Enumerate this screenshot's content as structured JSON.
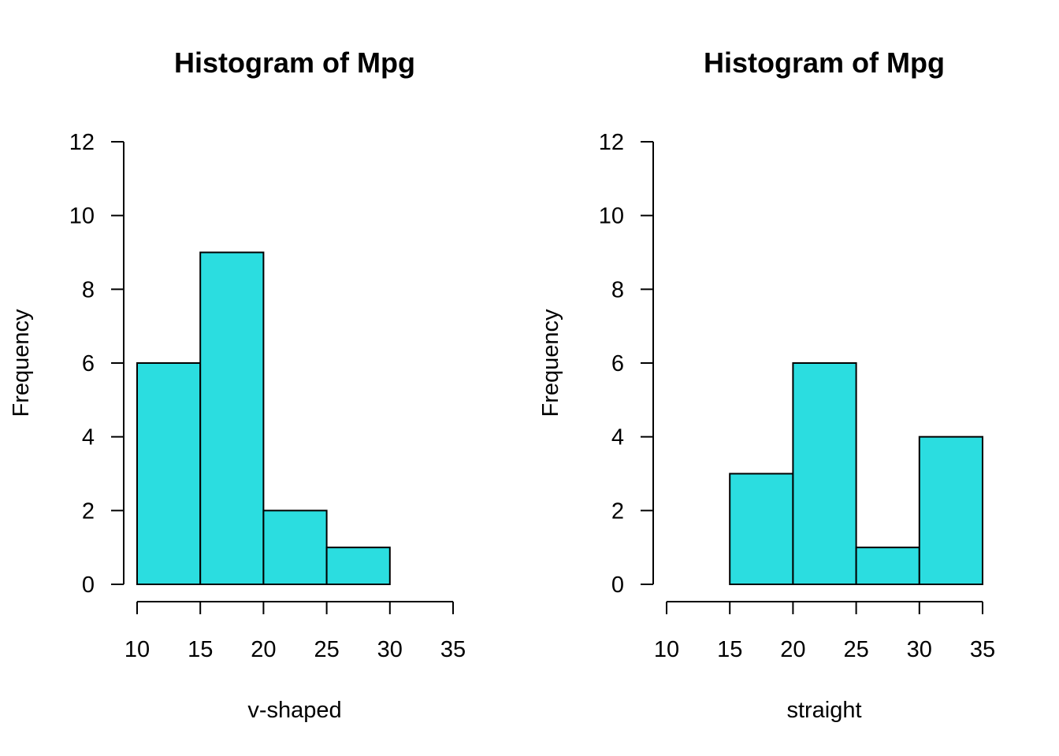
{
  "chart_data": [
    {
      "type": "bar",
      "subtype": "histogram",
      "title": "Histogram of Mpg",
      "xlabel": "v-shaped",
      "ylabel": "Frequency",
      "bins": [
        [
          10,
          15
        ],
        [
          15,
          20
        ],
        [
          20,
          25
        ],
        [
          25,
          30
        ]
      ],
      "values": [
        6,
        9,
        2,
        1
      ],
      "xlim": [
        10,
        35
      ],
      "ylim": [
        0,
        12
      ],
      "xticks": [
        10,
        15,
        20,
        25,
        30,
        35
      ],
      "yticks": [
        0,
        2,
        4,
        6,
        8,
        10,
        12
      ],
      "bar_color": "#2bdde0",
      "grid": false,
      "legend": "none"
    },
    {
      "type": "bar",
      "subtype": "histogram",
      "title": "Histogram of Mpg",
      "xlabel": "straight",
      "ylabel": "Frequency",
      "bins": [
        [
          15,
          20
        ],
        [
          20,
          25
        ],
        [
          25,
          30
        ],
        [
          30,
          35
        ]
      ],
      "values": [
        3,
        6,
        1,
        4
      ],
      "xlim": [
        10,
        35
      ],
      "ylim": [
        0,
        12
      ],
      "xticks": [
        10,
        15,
        20,
        25,
        30,
        35
      ],
      "yticks": [
        0,
        2,
        4,
        6,
        8,
        10,
        12
      ],
      "bar_color": "#2bdde0",
      "grid": false,
      "legend": "none"
    }
  ]
}
